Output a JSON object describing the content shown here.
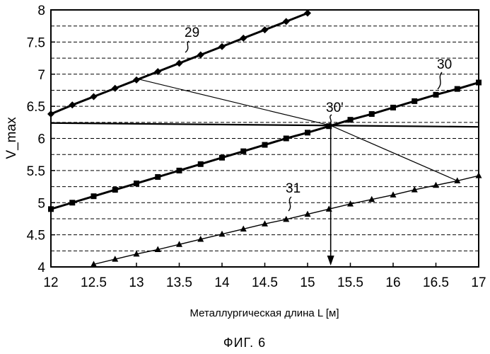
{
  "chart_data": {
    "type": "line",
    "xlabel": "Металлургическая длина L [м]",
    "ylabel": "V_max",
    "caption": "ФИГ. 6",
    "xlim": [
      12,
      17
    ],
    "ylim": [
      4,
      8
    ],
    "x_ticks": [
      "12",
      "12.5",
      "13",
      "13.5",
      "14",
      "14.5",
      "15",
      "15.5",
      "16",
      "16.5",
      "17"
    ],
    "y_ticks": [
      "4",
      "4.5",
      "5",
      "5.5",
      "6",
      "6.5",
      "7",
      "7.5",
      "8"
    ],
    "grid": "horizontal dashed at 0.25 intervals",
    "series": [
      {
        "name": "29",
        "marker": "diamond",
        "x": [
          12,
          12.25,
          12.5,
          12.75,
          13,
          13.25,
          13.5,
          13.75,
          14,
          14.25,
          14.5,
          14.75,
          15
        ],
        "y": [
          6.38,
          6.52,
          6.65,
          6.78,
          6.91,
          7.04,
          7.17,
          7.3,
          7.43,
          7.56,
          7.69,
          7.82,
          7.95
        ]
      },
      {
        "name": "30",
        "marker": "square",
        "x": [
          12,
          12.25,
          12.5,
          12.75,
          13,
          13.25,
          13.5,
          13.75,
          14,
          14.25,
          14.5,
          14.75,
          15,
          15.25,
          15.5,
          15.75,
          16,
          16.25,
          16.5,
          16.75,
          17
        ],
        "y": [
          4.9,
          5.0,
          5.1,
          5.2,
          5.3,
          5.4,
          5.5,
          5.6,
          5.7,
          5.8,
          5.9,
          6.0,
          6.09,
          6.19,
          6.29,
          6.38,
          6.48,
          6.58,
          6.68,
          6.77,
          6.87
        ]
      },
      {
        "name": "31",
        "marker": "triangle",
        "x": [
          12.5,
          12.75,
          13,
          13.25,
          13.5,
          13.75,
          14,
          14.25,
          14.5,
          14.75,
          15,
          15.25,
          15.5,
          15.75,
          16,
          16.25,
          16.5,
          16.75,
          17
        ],
        "y": [
          4.04,
          4.12,
          4.2,
          4.27,
          4.35,
          4.43,
          4.51,
          4.59,
          4.67,
          4.74,
          4.82,
          4.9,
          4.98,
          5.05,
          5.12,
          5.2,
          5.27,
          5.34,
          5.42
        ]
      }
    ],
    "annotations": {
      "label_30_prime": "30'",
      "intersection_x": 15.27,
      "intersection_y": 6.2,
      "horizontal_line_y": [
        6.24,
        6.18
      ],
      "connector_from": [
        13.0,
        6.93
      ],
      "connector_to": [
        16.75,
        5.34
      ]
    }
  }
}
